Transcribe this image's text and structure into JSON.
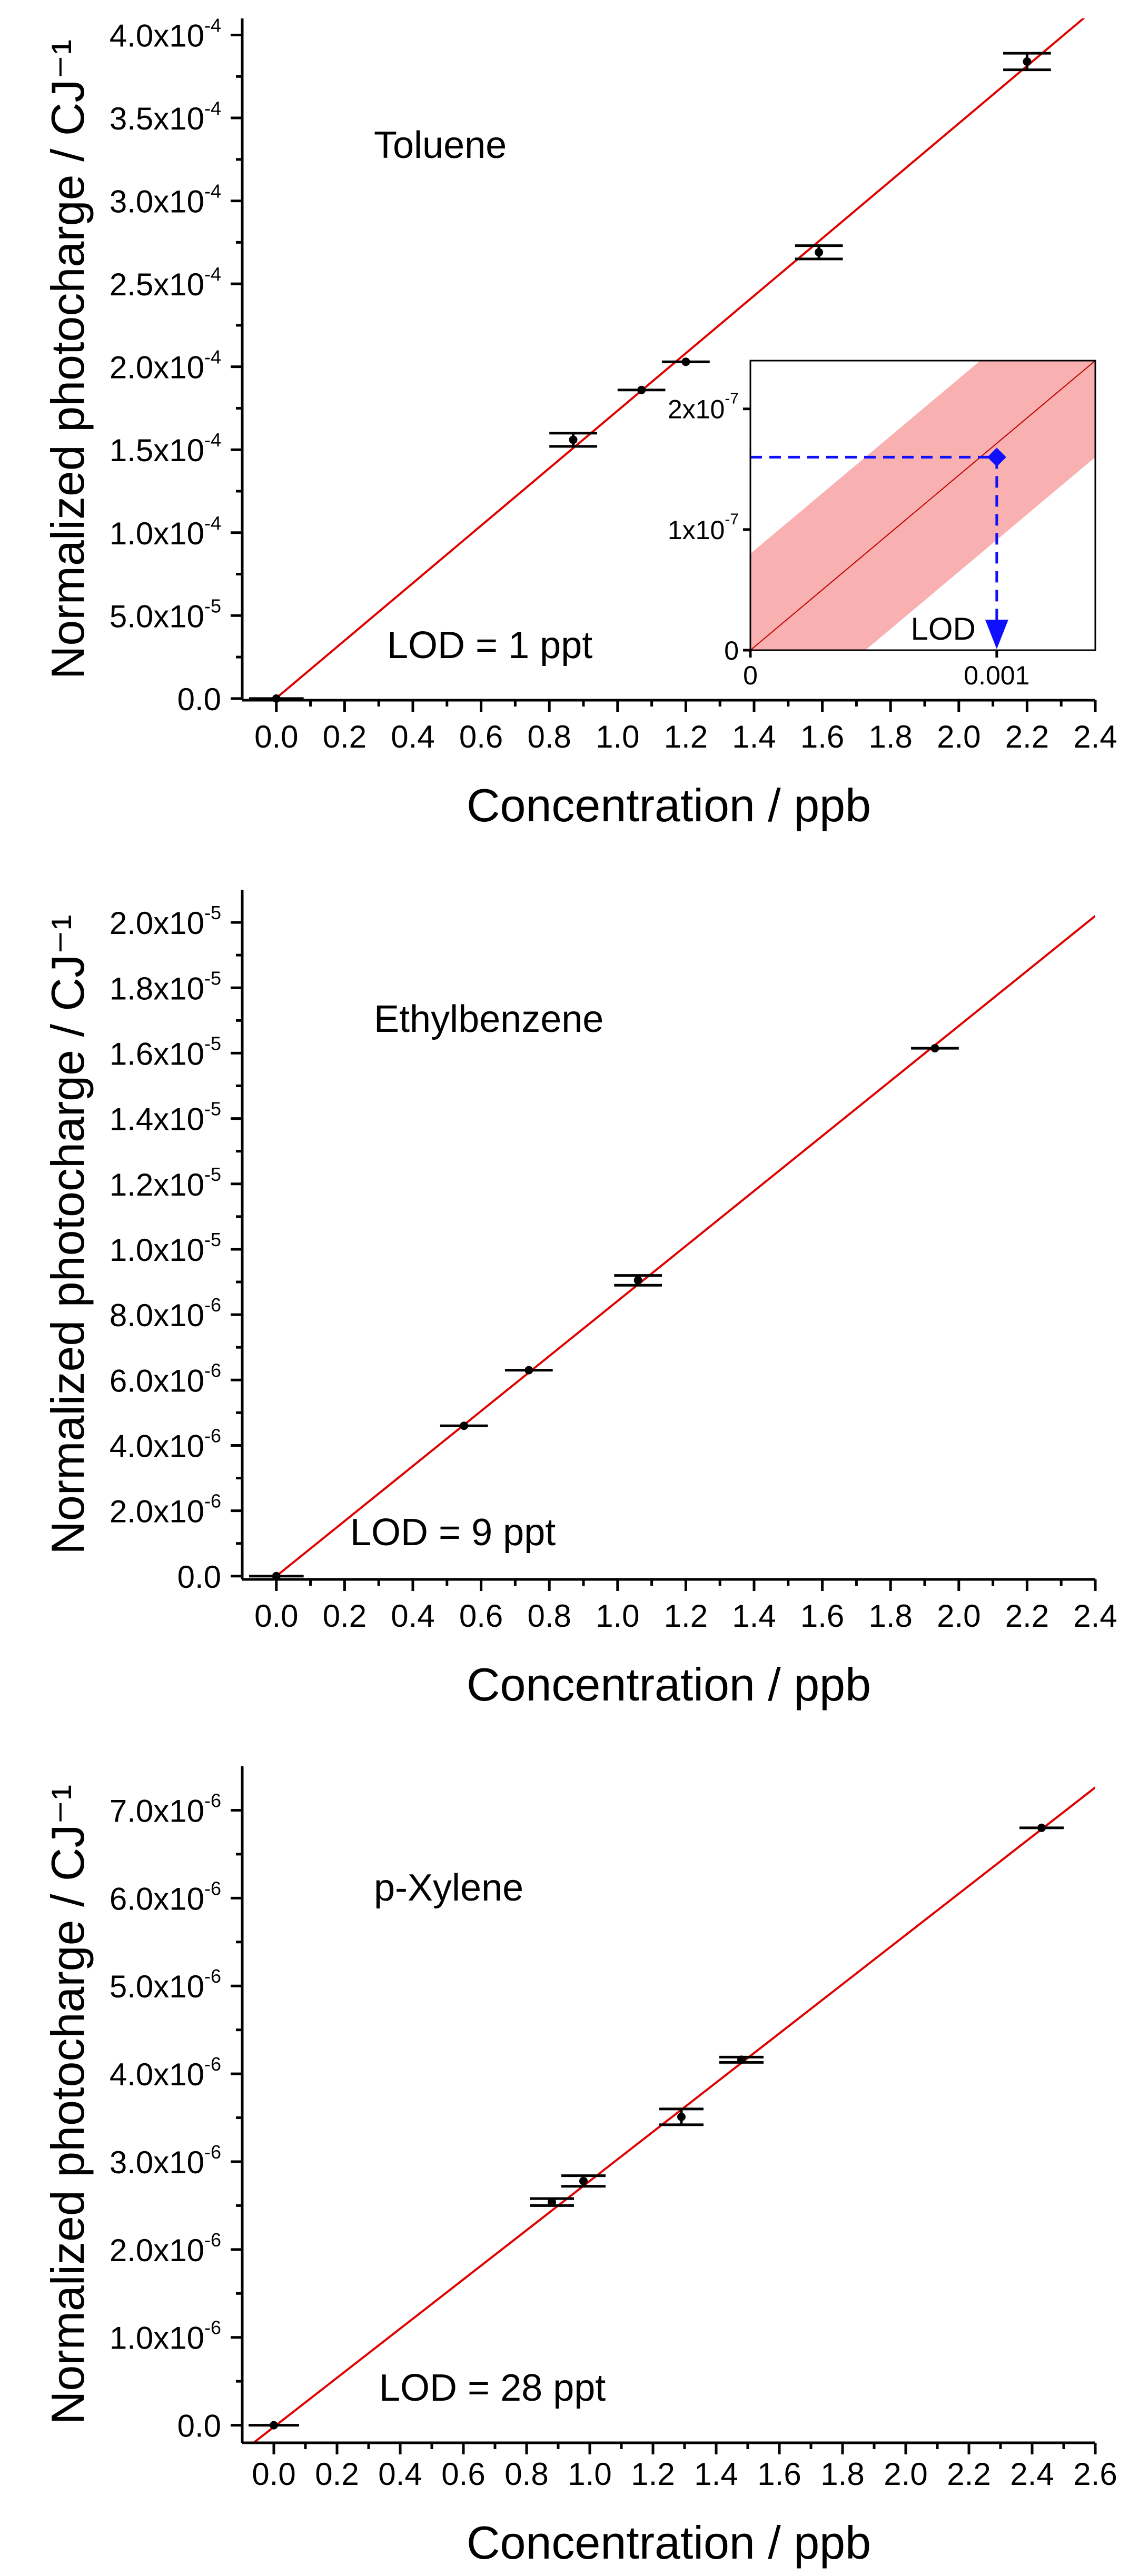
{
  "figure": {
    "colors": {
      "fit": "#e00000",
      "band": "#f8b0b0",
      "lod": "#1010ff",
      "axis": "#000000"
    }
  },
  "chart_data": [
    {
      "type": "scatter",
      "panel": "toluene",
      "title": "Toluene",
      "xlabel": "Concentration / ppb",
      "ylabel": "Normalized photocharge / CJ⁻¹",
      "annotation": "LOD = 1 ppt",
      "xlim": [
        -0.1,
        2.4
      ],
      "ylim": [
        -1e-06,
        0.00041
      ],
      "xticks": [
        0.0,
        0.2,
        0.4,
        0.6,
        0.8,
        1.0,
        1.2,
        1.4,
        1.6,
        1.8,
        2.0,
        2.2,
        2.4
      ],
      "xtick_labels": [
        "0.0",
        "0.2",
        "0.4",
        "0.6",
        "0.8",
        "1.0",
        "1.2",
        "1.4",
        "1.6",
        "1.8",
        "2.0",
        "2.2",
        "2.4"
      ],
      "yticks": [
        0,
        5e-05,
        0.0001,
        0.00015,
        0.0002,
        0.00025,
        0.0003,
        0.00035,
        0.0004
      ],
      "ytick_labels": [
        {
          "base": "0.0",
          "exp": ""
        },
        {
          "base": "5.0x10",
          "exp": "-5"
        },
        {
          "base": "1.0x10",
          "exp": "-4"
        },
        {
          "base": "1.5x10",
          "exp": "-4"
        },
        {
          "base": "2.0x10",
          "exp": "-4"
        },
        {
          "base": "2.5x10",
          "exp": "-4"
        },
        {
          "base": "3.0x10",
          "exp": "-4"
        },
        {
          "base": "3.5x10",
          "exp": "-4"
        },
        {
          "base": "4.0x10",
          "exp": "-4"
        }
      ],
      "points": [
        {
          "x": 0.0,
          "y": 0.0,
          "xerr": 0.08,
          "yerr": 0.0
        },
        {
          "x": 0.87,
          "y": 0.000156,
          "xerr": 0.07,
          "yerr": 4e-06
        },
        {
          "x": 1.07,
          "y": 0.000186,
          "xerr": 0.07,
          "yerr": 0.0
        },
        {
          "x": 1.2,
          "y": 0.000203,
          "xerr": 0.07,
          "yerr": 0.0
        },
        {
          "x": 1.59,
          "y": 0.000269,
          "xerr": 0.07,
          "yerr": 4e-06
        },
        {
          "x": 2.2,
          "y": 0.000384,
          "xerr": 0.07,
          "yerr": 5e-06
        }
      ],
      "fit": {
        "x": [
          -0.1,
          2.4
        ],
        "y": [
          -1.7e-05,
          0.000416
        ]
      },
      "inset": {
        "xlim": [
          0,
          0.0014
        ],
        "ylim": [
          0,
          2.4e-07
        ],
        "xticks": [
          0,
          0.001
        ],
        "xtick_labels": [
          "0",
          "0.001"
        ],
        "yticks": [
          0,
          1e-07,
          2e-07
        ],
        "ytick_labels": [
          {
            "base": "0",
            "exp": ""
          },
          {
            "base": "1x10",
            "exp": "-7"
          },
          {
            "base": "2x10",
            "exp": "-7"
          }
        ],
        "fit": {
          "x": [
            0,
            0.0014
          ],
          "y": [
            0,
            2.4e-07
          ]
        },
        "band_offset": 8e-08,
        "lod_point": {
          "x": 0.001,
          "y": 1.6e-07
        },
        "lod_label": "LOD"
      }
    },
    {
      "type": "scatter",
      "panel": "ethylbenzene",
      "title": "Ethylbenzene",
      "xlabel": "Concentration / ppb",
      "ylabel": "Normalized photocharge / CJ⁻¹",
      "annotation": "LOD = 9 ppt",
      "xlim": [
        -0.1,
        2.4
      ],
      "ylim": [
        -1e-07,
        2.1e-05
      ],
      "xticks": [
        0.0,
        0.2,
        0.4,
        0.6,
        0.8,
        1.0,
        1.2,
        1.4,
        1.6,
        1.8,
        2.0,
        2.2,
        2.4
      ],
      "xtick_labels": [
        "0.0",
        "0.2",
        "0.4",
        "0.6",
        "0.8",
        "1.0",
        "1.2",
        "1.4",
        "1.6",
        "1.8",
        "2.0",
        "2.2",
        "2.4"
      ],
      "yticks": [
        0,
        2e-06,
        4e-06,
        6e-06,
        8e-06,
        1e-05,
        1.2e-05,
        1.4e-05,
        1.6e-05,
        1.8e-05,
        2e-05
      ],
      "ytick_labels": [
        {
          "base": "0.0",
          "exp": ""
        },
        {
          "base": "2.0x10",
          "exp": "-6"
        },
        {
          "base": "4.0x10",
          "exp": "-6"
        },
        {
          "base": "6.0x10",
          "exp": "-6"
        },
        {
          "base": "8.0x10",
          "exp": "-6"
        },
        {
          "base": "1.0x10",
          "exp": "-5"
        },
        {
          "base": "1.2x10",
          "exp": "-5"
        },
        {
          "base": "1.4x10",
          "exp": "-5"
        },
        {
          "base": "1.6x10",
          "exp": "-5"
        },
        {
          "base": "1.8x10",
          "exp": "-5"
        },
        {
          "base": "2.0x10",
          "exp": "-5"
        }
      ],
      "points": [
        {
          "x": 0.0,
          "y": 0.0,
          "xerr": 0.08,
          "yerr": 0.0
        },
        {
          "x": 0.55,
          "y": 4.6e-06,
          "xerr": 0.07,
          "yerr": 0.0
        },
        {
          "x": 0.74,
          "y": 6.3e-06,
          "xerr": 0.07,
          "yerr": 0.0
        },
        {
          "x": 1.06,
          "y": 9.05e-06,
          "xerr": 0.07,
          "yerr": 1.5e-07
        },
        {
          "x": 1.93,
          "y": 1.615e-05,
          "xerr": 0.07,
          "yerr": 0.0
        }
      ],
      "fit": {
        "x": [
          -0.1,
          2.4
        ],
        "y": [
          -8.4e-07,
          2.02e-05
        ]
      }
    },
    {
      "type": "scatter",
      "panel": "p-xylene",
      "title": "p-Xylene",
      "xlabel": "Concentration / ppb",
      "ylabel": "Normalized photocharge / CJ⁻¹",
      "annotation": "LOD = 28 ppt",
      "xlim": [
        -0.1,
        2.6
      ],
      "ylim": [
        -2e-07,
        7.5e-06
      ],
      "xticks": [
        0.0,
        0.2,
        0.4,
        0.6,
        0.8,
        1.0,
        1.2,
        1.4,
        1.6,
        1.8,
        2.0,
        2.2,
        2.4,
        2.6
      ],
      "xtick_labels": [
        "0.0",
        "0.2",
        "0.4",
        "0.6",
        "0.8",
        "1.0",
        "1.2",
        "1.4",
        "1.6",
        "1.8",
        "2.0",
        "2.2",
        "2.4",
        "2.6"
      ],
      "yticks": [
        0,
        1e-06,
        2e-06,
        3e-06,
        4e-06,
        5e-06,
        6e-06,
        7e-06
      ],
      "ytick_labels": [
        {
          "base": "0.0",
          "exp": ""
        },
        {
          "base": "1.0x10",
          "exp": "-6"
        },
        {
          "base": "2.0x10",
          "exp": "-6"
        },
        {
          "base": "3.0x10",
          "exp": "-6"
        },
        {
          "base": "4.0x10",
          "exp": "-6"
        },
        {
          "base": "5.0x10",
          "exp": "-6"
        },
        {
          "base": "6.0x10",
          "exp": "-6"
        },
        {
          "base": "7.0x10",
          "exp": "-6"
        }
      ],
      "points": [
        {
          "x": 0.0,
          "y": 0.0,
          "xerr": 0.08,
          "yerr": 0.0
        },
        {
          "x": 0.88,
          "y": 2.54e-06,
          "xerr": 0.07,
          "yerr": 4e-08
        },
        {
          "x": 0.98,
          "y": 2.78e-06,
          "xerr": 0.07,
          "yerr": 6e-08
        },
        {
          "x": 1.29,
          "y": 3.51e-06,
          "xerr": 0.07,
          "yerr": 9e-08
        },
        {
          "x": 1.48,
          "y": 4.16e-06,
          "xerr": 0.07,
          "yerr": 3e-08
        },
        {
          "x": 2.43,
          "y": 6.8e-06,
          "xerr": 0.07,
          "yerr": 0.0
        }
      ],
      "fit": {
        "x": [
          -0.1,
          2.6
        ],
        "y": [
          -3e-07,
          7.26e-06
        ]
      }
    }
  ]
}
